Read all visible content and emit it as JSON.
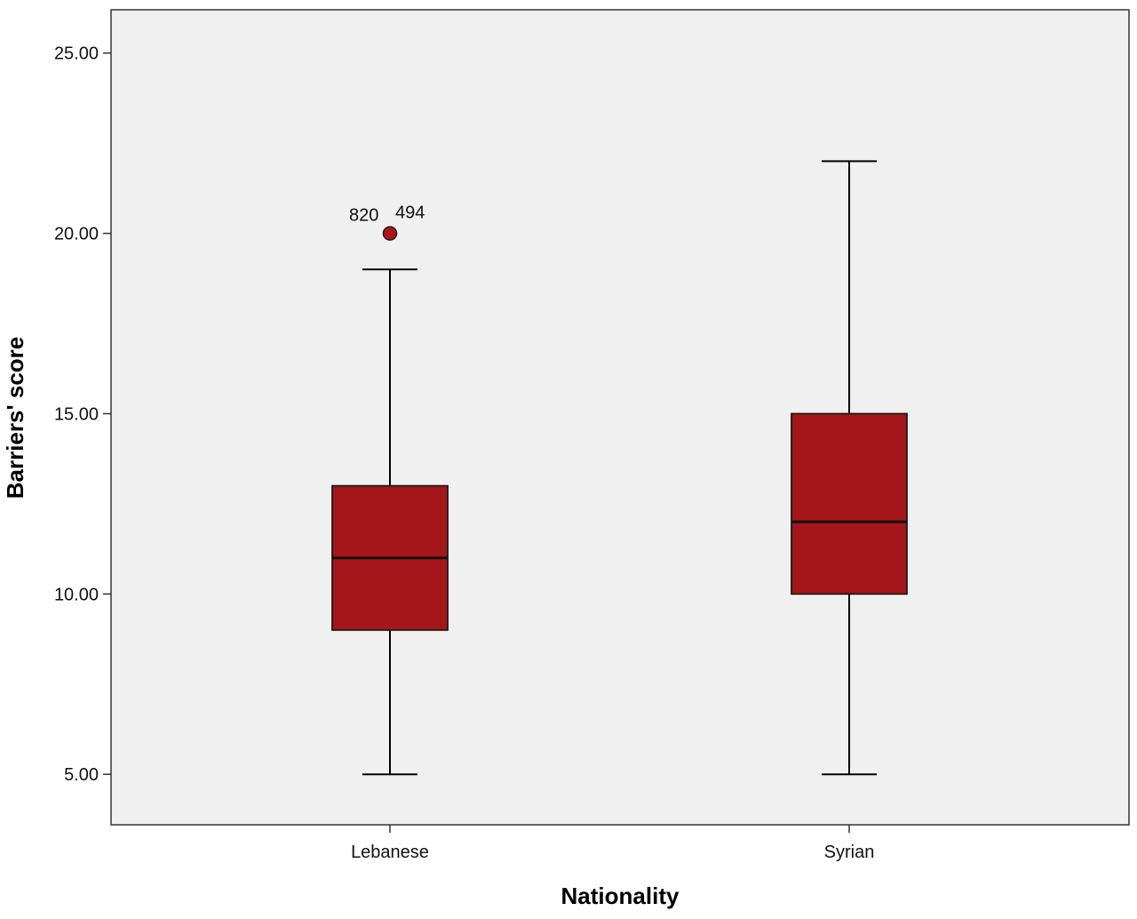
{
  "chart_data": {
    "type": "boxplot",
    "title": "",
    "xlabel": "Nationality",
    "ylabel": "Barriers' score",
    "ylim": [
      3.6,
      26.2
    ],
    "yticks": [
      5,
      10,
      15,
      20,
      25
    ],
    "ytick_labels": [
      "5.00",
      "10.00",
      "15.00",
      "20.00",
      "25.00"
    ],
    "grid": false,
    "colors": {
      "plot_background": "#f0f0f0",
      "box_fill": "#a5161a",
      "outlier_fill": "#b0141a",
      "line": "#000000"
    },
    "categories": [
      "Lebanese",
      "Syrian"
    ],
    "boxes": [
      {
        "category": "Lebanese",
        "whisker_low": 5,
        "q1": 9,
        "median": 11,
        "q3": 13,
        "whisker_high": 19,
        "outliers": [
          {
            "value": 20,
            "labels": [
              "820",
              "494"
            ]
          }
        ]
      },
      {
        "category": "Syrian",
        "whisker_low": 5,
        "q1": 10,
        "median": 12,
        "q3": 15,
        "whisker_high": 22,
        "outliers": []
      }
    ]
  }
}
